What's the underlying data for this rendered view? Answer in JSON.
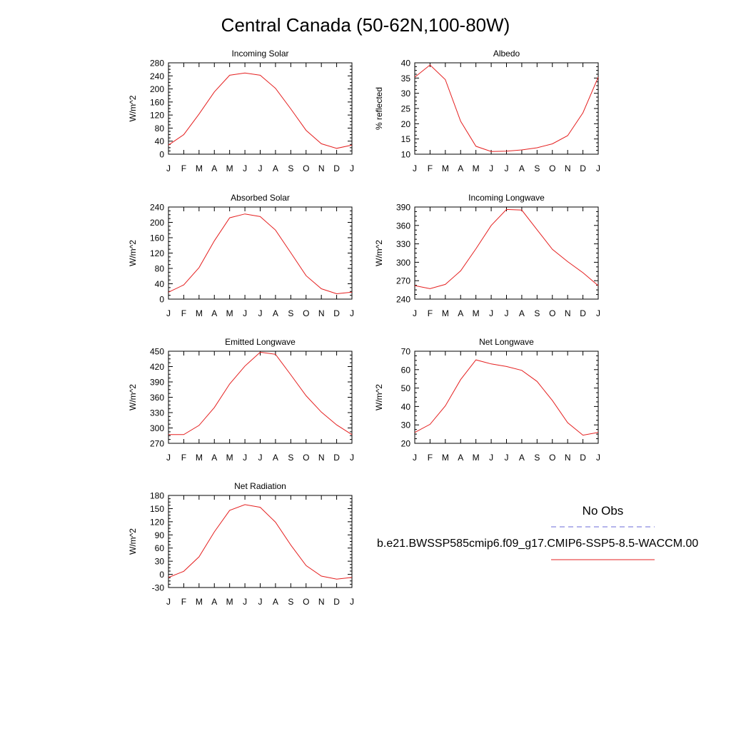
{
  "title": "Central Canada (50-62N,100-80W)",
  "months": [
    "J",
    "F",
    "M",
    "A",
    "M",
    "J",
    "J",
    "A",
    "S",
    "O",
    "N",
    "D",
    "J"
  ],
  "legend": {
    "obs_label": "No Obs",
    "model_label": "b.e21.BWSSP585cmip6.f09_g17.CMIP6-SSP5-8.5-WACCM.00",
    "obs_color": "#6b6bd9",
    "model_color": "#e52020"
  },
  "chart_data": [
    {
      "type": "line",
      "title": "Incoming Solar",
      "ylabel": "W/m^2",
      "ylim": [
        0,
        280
      ],
      "yticks": [
        0,
        40,
        80,
        120,
        160,
        200,
        240,
        280
      ],
      "ytick_labels": [
        "0",
        "40",
        "80",
        "120",
        "160",
        "200",
        "240",
        "280"
      ],
      "series": [
        {
          "values": [
            28,
            60,
            123,
            191,
            242,
            249,
            242,
            202,
            139,
            73,
            32,
            18,
            28
          ]
        }
      ]
    },
    {
      "type": "line",
      "title": "Albedo",
      "ylabel": "% reflected",
      "ylim": [
        10,
        40
      ],
      "yticks": [
        10,
        15,
        20,
        25,
        30,
        35,
        40
      ],
      "ytick_labels": [
        "10",
        "15",
        "20",
        "25",
        "30",
        "35",
        "40"
      ],
      "series": [
        {
          "values": [
            35.3,
            39.3,
            34.5,
            20.8,
            12.6,
            10.9,
            11.0,
            11.4,
            12.1,
            13.4,
            16.1,
            23.6,
            35.3
          ]
        }
      ]
    },
    {
      "type": "line",
      "title": "Absorbed Solar",
      "ylabel": "W/m^2",
      "ylim": [
        0,
        240
      ],
      "yticks": [
        0,
        40,
        80,
        120,
        160,
        200,
        240
      ],
      "ytick_labels": [
        "0",
        "40",
        "80",
        "120",
        "160",
        "200",
        "240"
      ],
      "series": [
        {
          "values": [
            18,
            37,
            82,
            152,
            212,
            222,
            215,
            180,
            121,
            61,
            27,
            14,
            18
          ]
        }
      ]
    },
    {
      "type": "line",
      "title": "Incoming Longwave",
      "ylabel": "W/m^2",
      "ylim": [
        240,
        390
      ],
      "yticks": [
        240,
        270,
        300,
        330,
        360,
        390
      ],
      "ytick_labels": [
        "240",
        "270",
        "300",
        "330",
        "360",
        "390"
      ],
      "series": [
        {
          "values": [
            262,
            257,
            264,
            286,
            322,
            360,
            386,
            385,
            353,
            321,
            301,
            283,
            262
          ]
        }
      ]
    },
    {
      "type": "line",
      "title": "Emitted Longwave",
      "ylabel": "W/m^2",
      "ylim": [
        270,
        450
      ],
      "yticks": [
        270,
        300,
        330,
        360,
        390,
        420,
        450
      ],
      "ytick_labels": [
        "270",
        "300",
        "330",
        "360",
        "390",
        "420",
        "450"
      ],
      "series": [
        {
          "values": [
            287,
            287,
            305,
            340,
            386,
            421,
            448,
            444,
            404,
            363,
            331,
            306,
            287
          ]
        }
      ]
    },
    {
      "type": "line",
      "title": "Net Longwave",
      "ylabel": "W/m^2",
      "ylim": [
        20,
        70
      ],
      "yticks": [
        20,
        30,
        40,
        50,
        60,
        70
      ],
      "ytick_labels": [
        "20",
        "30",
        "40",
        "50",
        "60",
        "70"
      ],
      "series": [
        {
          "values": [
            25.9,
            30.3,
            40.3,
            54.6,
            65.3,
            63.1,
            61.7,
            59.6,
            53.6,
            43.2,
            31.2,
            24.4,
            25.9
          ]
        }
      ]
    },
    {
      "type": "line",
      "title": "Net Radiation",
      "ylabel": "W/m^2",
      "ylim": [
        -30,
        180
      ],
      "yticks": [
        -30,
        0,
        30,
        60,
        90,
        120,
        150,
        180
      ],
      "ytick_labels": [
        "-30",
        "0",
        "30",
        "60",
        "90",
        "120",
        "150",
        "180"
      ],
      "series": [
        {
          "values": [
            -7,
            7,
            40,
            97,
            146,
            159,
            153,
            119,
            67,
            20,
            -4,
            -11,
            -7
          ]
        }
      ]
    }
  ]
}
